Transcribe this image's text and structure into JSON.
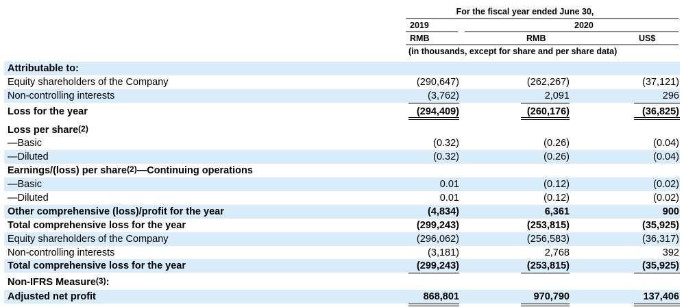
{
  "header": {
    "period": "For the fiscal year ended June 30,",
    "year_2019": "2019",
    "year_2020": "2020",
    "cur_2019": "RMB",
    "cur_2020_rmb": "RMB",
    "cur_2020_usd": "US$",
    "note": "(in thousands, except for share and per share data)"
  },
  "rows": [
    {
      "label": "Attributable to:",
      "bold": true,
      "shade": true,
      "values": [
        "",
        "",
        ""
      ]
    },
    {
      "label": "Equity shareholders of the Company",
      "bold": false,
      "shade": false,
      "values": [
        "(290,647)",
        "(262,267)",
        "(37,121)"
      ]
    },
    {
      "label": "Non-controlling interests",
      "bold": false,
      "shade": true,
      "values": [
        "(3,762)",
        "2,091",
        "296"
      ]
    },
    {
      "label": "Loss for the year",
      "bold": true,
      "shade": false,
      "values": [
        "(294,409)",
        "(260,176)",
        "(36,825)"
      ]
    },
    {
      "label": "Loss per share",
      "sup": "(2)",
      "bold": true,
      "shade": false,
      "values": [
        "",
        "",
        ""
      ]
    },
    {
      "label": "—Basic",
      "bold": false,
      "shade": false,
      "values": [
        "(0.32)",
        "(0.26)",
        "(0.04)"
      ]
    },
    {
      "label": "—Diluted",
      "bold": false,
      "shade": true,
      "values": [
        "(0.32)",
        "(0.26)",
        "(0.04)"
      ]
    },
    {
      "label": "Earnings/(loss) per share",
      "sup": "(2)",
      "suffix": "—Continuing operations",
      "bold": true,
      "shade": false,
      "values": [
        "",
        "",
        ""
      ]
    },
    {
      "label": "—Basic",
      "bold": false,
      "shade": true,
      "values": [
        "0.01",
        "(0.12)",
        "(0.02)"
      ]
    },
    {
      "label": "—Diluted",
      "bold": false,
      "shade": false,
      "values": [
        "0.01",
        "(0.12)",
        "(0.02)"
      ]
    },
    {
      "label": "Other comprehensive (loss)/profit for the year",
      "bold": true,
      "shade": true,
      "values": [
        "(4,834)",
        "6,361",
        "900"
      ]
    },
    {
      "label": "Total comprehensive loss for the year",
      "bold": true,
      "shade": false,
      "values": [
        "(299,243)",
        "(253,815)",
        "(35,925)"
      ]
    },
    {
      "label": "Equity shareholders of the Company",
      "bold": false,
      "shade": true,
      "values": [
        "(296,062)",
        "(256,583)",
        "(36,317)"
      ]
    },
    {
      "label": "Non-controlling interests",
      "bold": false,
      "shade": false,
      "values": [
        "(3,181)",
        "2,768",
        "392"
      ]
    },
    {
      "label": "Total comprehensive loss for the year",
      "bold": true,
      "shade": true,
      "values": [
        "(299,243)",
        "(253,815)",
        "(35,925)"
      ]
    },
    {
      "label": "Non-IFRS Measure",
      "sup": "(3)",
      "suffix": ":",
      "bold": true,
      "shade": false,
      "values": [
        "",
        "",
        ""
      ]
    },
    {
      "label": "Adjusted net profit",
      "bold": true,
      "shade": true,
      "values": [
        "868,801",
        "970,790",
        "137,406"
      ]
    }
  ]
}
